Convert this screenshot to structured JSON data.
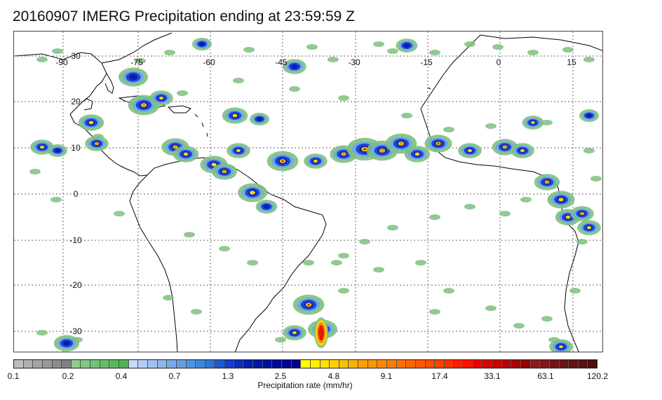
{
  "title": "20160907 IMERG Precipitation ending at 23:59:59 Z",
  "map": {
    "lon_labels": [
      "-90",
      "-75",
      "-60",
      "-45",
      "-30",
      "-15",
      "0",
      "15"
    ],
    "lat_labels": [
      "30",
      "20",
      "10",
      "0",
      "-10",
      "-20",
      "-30"
    ],
    "grid": true
  },
  "colorbar": {
    "label": "Precipitation rate (mm/hr)",
    "tick_labels": [
      "0.1",
      "0.2",
      "0.4",
      "0.7",
      "1.3",
      "2.5",
      "4.8",
      "9.1",
      "17.4",
      "33.1",
      "63.1",
      "120.2"
    ],
    "colors": [
      "#bdbdbd",
      "#b0b0b0",
      "#a4a4a4",
      "#989898",
      "#8c8c8c",
      "#808080",
      "#8ccc8c",
      "#80c880",
      "#74c274",
      "#68bc68",
      "#5cb65c",
      "#52b052",
      "#c8d8ff",
      "#b4cdf8",
      "#a0c2f2",
      "#8cb6ee",
      "#78aaea",
      "#649ee6",
      "#5092e2",
      "#3c86de",
      "#2a78d8",
      "#1c5cd0",
      "#1040c8",
      "#0a2cc0",
      "#0020b0",
      "#0018a8",
      "#0010a0",
      "#000c98",
      "#000890",
      "#000488",
      "#ffff00",
      "#fff000",
      "#ffe000",
      "#ffd000",
      "#ffc000",
      "#ffb000",
      "#ffa000",
      "#ff9400",
      "#ff8800",
      "#ff7c00",
      "#ff7000",
      "#ff6400",
      "#ff5800",
      "#ff4c00",
      "#ff4000",
      "#ff3000",
      "#ff2000",
      "#ff1000",
      "#ee0000",
      "#dd0000",
      "#cc0000",
      "#bb0000",
      "#aa0000",
      "#990000",
      "#8c1a1a",
      "#801818",
      "#761616",
      "#6c1414",
      "#621212",
      "#581010",
      "#4e0e0e"
    ]
  }
}
